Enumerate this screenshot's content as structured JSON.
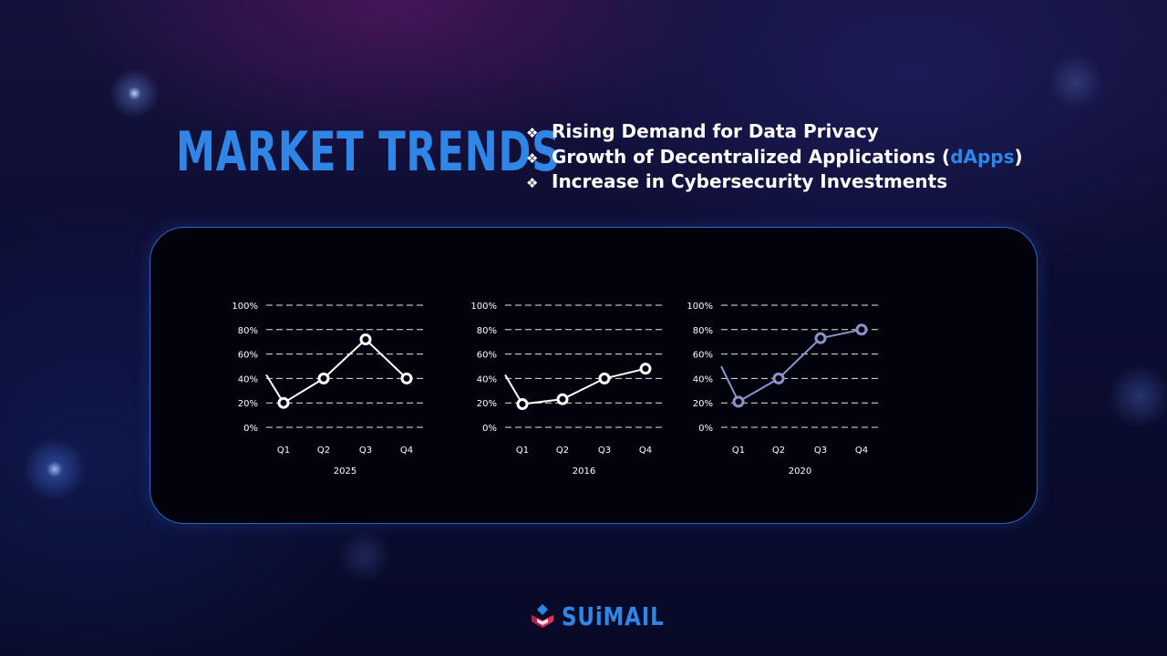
{
  "slide": {
    "title": "MARKET TRENDS",
    "bullets": [
      {
        "mark": "❖",
        "parts": [
          "Rising Demand for Data Privacy"
        ]
      },
      {
        "mark": "❖",
        "parts": [
          "Growth of Decentralized Applications (",
          "dApps",
          ")"
        ]
      },
      {
        "mark": "❖",
        "parts": [
          "Increase in Cybersecurity Investments"
        ]
      }
    ],
    "logo_text": "SUiMAIL",
    "colors": {
      "accent": "#2f86e6",
      "panel_border": "#2a63c8"
    }
  },
  "chart_data": [
    {
      "type": "line",
      "categories": [
        "Q1",
        "Q2",
        "Q3",
        "Q4"
      ],
      "lead_in": 43,
      "values": [
        20,
        40,
        72,
        40
      ],
      "xlabel": "2025",
      "ylim": [
        0,
        100
      ],
      "yticks": [
        "0%",
        "20%",
        "40%",
        "60%",
        "80%",
        "100%"
      ],
      "grid": true,
      "line_color": "#ffffff",
      "marker_color": "#ffffff"
    },
    {
      "type": "line",
      "categories": [
        "Q1",
        "Q2",
        "Q3",
        "Q4"
      ],
      "lead_in": 43,
      "values": [
        19,
        23,
        40,
        48
      ],
      "xlabel": "2016",
      "ylim": [
        0,
        100
      ],
      "yticks": [
        "0%",
        "20%",
        "40%",
        "60%",
        "80%",
        "100%"
      ],
      "grid": true,
      "line_color": "#ffffff",
      "marker_color": "#ffffff"
    },
    {
      "type": "line",
      "categories": [
        "Q1",
        "Q2",
        "Q3",
        "Q4"
      ],
      "lead_in": 50,
      "values": [
        21,
        40,
        73,
        80
      ],
      "xlabel": "2020",
      "ylim": [
        0,
        100
      ],
      "yticks": [
        "0%",
        "20%",
        "40%",
        "60%",
        "80%",
        "100%"
      ],
      "grid": true,
      "line_color": "#8c93c8",
      "marker_color": "#8c93c8"
    }
  ]
}
